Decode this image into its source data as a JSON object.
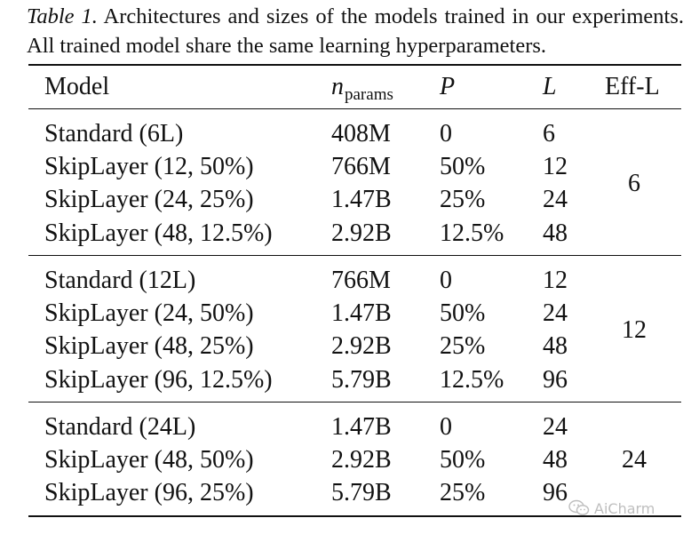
{
  "caption": {
    "label": "Table 1.",
    "text": " Architectures and sizes of the models trained in our experiments. All trained model share the same learning hyperparameters."
  },
  "header": {
    "model": "Model",
    "nparams_symbol": "n",
    "nparams_sub": "params",
    "p": "P",
    "l": "L",
    "eff_l": "Eff-L"
  },
  "groups": [
    {
      "eff_l": "6",
      "rows": [
        {
          "model": "Standard (6L)",
          "nparams": "408M",
          "p": "0",
          "l": "6"
        },
        {
          "model": "SkipLayer (12, 50%)",
          "nparams": "766M",
          "p": "50%",
          "l": "12"
        },
        {
          "model": "SkipLayer (24, 25%)",
          "nparams": "1.47B",
          "p": "25%",
          "l": "24"
        },
        {
          "model": "SkipLayer (48, 12.5%)",
          "nparams": "2.92B",
          "p": "12.5%",
          "l": "48"
        }
      ]
    },
    {
      "eff_l": "12",
      "rows": [
        {
          "model": "Standard (12L)",
          "nparams": "766M",
          "p": "0",
          "l": "12"
        },
        {
          "model": "SkipLayer (24, 50%)",
          "nparams": "1.47B",
          "p": "50%",
          "l": "24"
        },
        {
          "model": "SkipLayer (48, 25%)",
          "nparams": "2.92B",
          "p": "25%",
          "l": "48"
        },
        {
          "model": "SkipLayer (96, 12.5%)",
          "nparams": "5.79B",
          "p": "12.5%",
          "l": "96"
        }
      ]
    },
    {
      "eff_l": "24",
      "rows": [
        {
          "model": "Standard (24L)",
          "nparams": "1.47B",
          "p": "0",
          "l": "24"
        },
        {
          "model": "SkipLayer (48, 50%)",
          "nparams": "2.92B",
          "p": "50%",
          "l": "48"
        },
        {
          "model": "SkipLayer (96, 25%)",
          "nparams": "5.79B",
          "p": "25%",
          "l": "96"
        }
      ]
    }
  ],
  "watermark": {
    "text": "AiCharm",
    "icon": "wechat-icon"
  }
}
